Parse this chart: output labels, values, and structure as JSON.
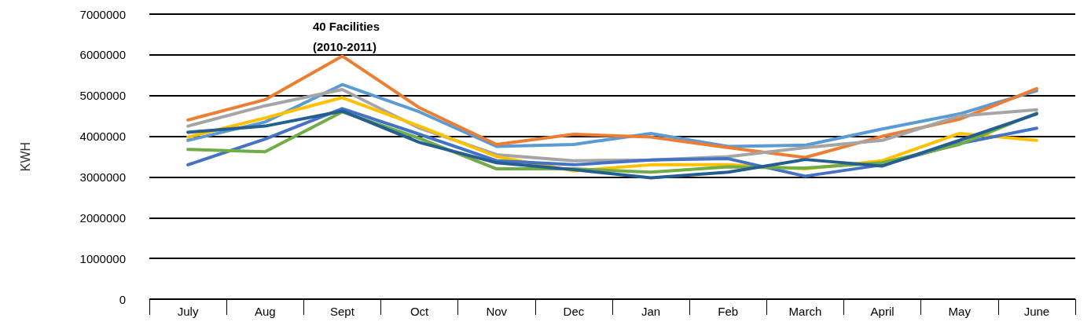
{
  "chart_data": {
    "type": "line",
    "ylabel": "KWH",
    "annotations": [
      "40 Facilities\n(2010-2011)"
    ],
    "categories": [
      "July",
      "Aug",
      "Sept",
      "Oct",
      "Nov",
      "Dec",
      "Jan",
      "Feb",
      "March",
      "April",
      "May",
      "June"
    ],
    "series": [
      {
        "color": "#5b9bd5",
        "values": [
          3900000,
          4350000,
          5270000,
          4600000,
          3750000,
          3800000,
          4070000,
          3750000,
          3780000,
          4180000,
          4550000,
          5120000
        ]
      },
      {
        "color": "#ed7d31",
        "values": [
          4400000,
          4900000,
          5970000,
          4700000,
          3800000,
          4050000,
          3980000,
          3720000,
          3480000,
          4000000,
          4420000,
          5170000
        ]
      },
      {
        "color": "#a5a5a5",
        "values": [
          4250000,
          4750000,
          5150000,
          4200000,
          3550000,
          3400000,
          3420000,
          3500000,
          3720000,
          3900000,
          4500000,
          4650000
        ]
      },
      {
        "color": "#ffc000",
        "values": [
          3980000,
          4450000,
          4950000,
          4250000,
          3500000,
          3150000,
          3300000,
          3300000,
          3200000,
          3400000,
          4070000,
          3900000
        ]
      },
      {
        "color": "#4472c4",
        "values": [
          3300000,
          3930000,
          4680000,
          4050000,
          3400000,
          3300000,
          3420000,
          3450000,
          3020000,
          3300000,
          3820000,
          4200000
        ]
      },
      {
        "color": "#70ad47",
        "values": [
          3680000,
          3620000,
          4600000,
          3950000,
          3200000,
          3200000,
          3120000,
          3250000,
          3220000,
          3350000,
          3800000,
          4570000
        ]
      },
      {
        "color": "#255e91",
        "values": [
          4100000,
          4250000,
          4620000,
          3850000,
          3350000,
          3180000,
          2980000,
          3120000,
          3430000,
          3270000,
          3900000,
          4550000
        ]
      }
    ],
    "ylim": [
      0,
      7000000
    ],
    "yticks": [
      0,
      1000000,
      2000000,
      3000000,
      4000000,
      5000000,
      6000000,
      7000000
    ],
    "grid": "y",
    "marker": "none",
    "line_style": "solid"
  }
}
